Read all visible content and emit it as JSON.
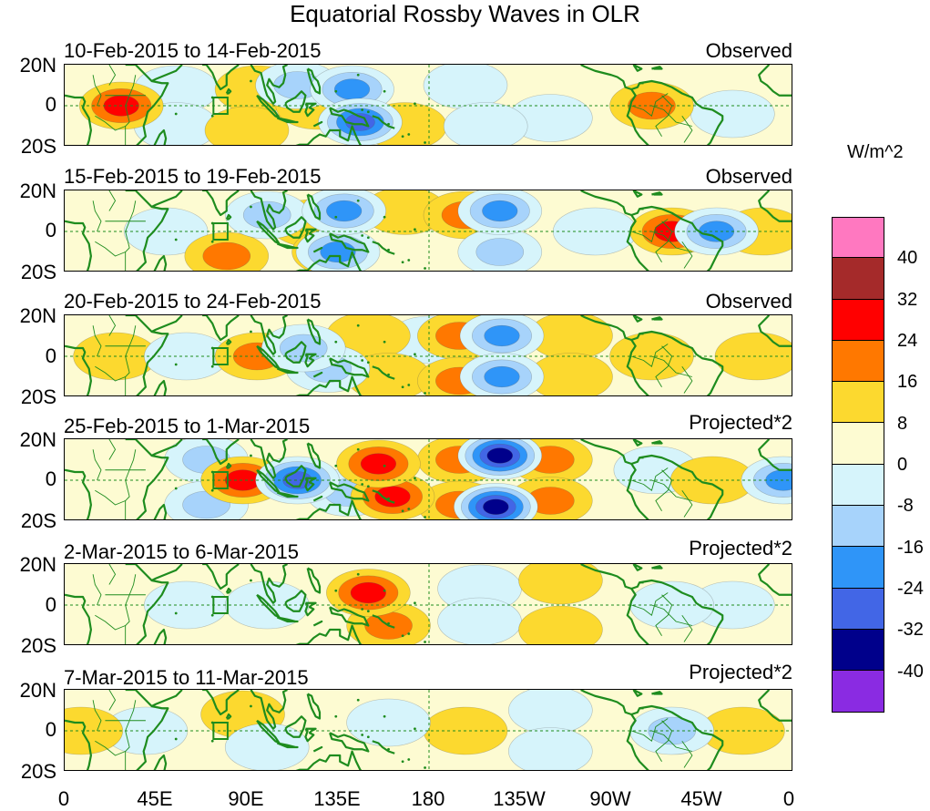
{
  "title": "Equatorial Rossby Waves in OLR",
  "panels": [
    {
      "date_range": "10-Feb-2015 to 14-Feb-2015",
      "type": "Observed"
    },
    {
      "date_range": "15-Feb-2015 to 19-Feb-2015",
      "type": "Observed"
    },
    {
      "date_range": "20-Feb-2015 to 24-Feb-2015",
      "type": "Observed"
    },
    {
      "date_range": "25-Feb-2015 to 1-Mar-2015",
      "type": "Projected*2"
    },
    {
      "date_range": "2-Mar-2015 to 6-Mar-2015",
      "type": "Projected*2"
    },
    {
      "date_range": "7-Mar-2015 to 11-Mar-2015",
      "type": "Projected*2"
    }
  ],
  "lat_labels": [
    "20N",
    "0",
    "20S"
  ],
  "lon_labels": [
    "0",
    "45E",
    "90E",
    "135E",
    "180",
    "135W",
    "90W",
    "45W",
    "0"
  ],
  "colorbar": {
    "units": "W/m^2",
    "levels": [
      "40",
      "32",
      "24",
      "16",
      "8",
      "0",
      "-8",
      "-16",
      "-24",
      "-32",
      "-40"
    ],
    "colors": [
      "#ff78c0",
      "#a52a2a",
      "#ff0000",
      "#ff7800",
      "#fcd92f",
      "#fdfbd2",
      "#d6f4fb",
      "#a7d3fb",
      "#2f95f8",
      "#4266e6",
      "#00008b",
      "#8a2be2"
    ]
  },
  "map": {
    "land_color": "#1e8c1e",
    "zero_line_color": "#1e8c1e"
  },
  "anomalies": [
    [
      {
        "lon": 28,
        "lat": 0,
        "v": 20
      },
      {
        "lon": 55,
        "lat": 8,
        "v": -8
      },
      {
        "lon": 55,
        "lat": -10,
        "v": -8
      },
      {
        "lon": 95,
        "lat": 8,
        "v": 8
      },
      {
        "lon": 90,
        "lat": -12,
        "v": 10
      },
      {
        "lon": 115,
        "lat": 10,
        "v": -12
      },
      {
        "lon": 125,
        "lat": 0,
        "v": 10
      },
      {
        "lon": 142,
        "lat": 8,
        "v": -26
      },
      {
        "lon": 146,
        "lat": -8,
        "v": -28
      },
      {
        "lon": 168,
        "lat": -10,
        "v": 8
      },
      {
        "lon": 198,
        "lat": 10,
        "v": -8
      },
      {
        "lon": 208,
        "lat": -10,
        "v": -10
      },
      {
        "lon": 240,
        "lat": -6,
        "v": -8
      },
      {
        "lon": 290,
        "lat": 0,
        "v": 12
      },
      {
        "lon": 330,
        "lat": -4,
        "v": -8
      }
    ],
    [
      {
        "lon": 50,
        "lat": 0,
        "v": -10
      },
      {
        "lon": 80,
        "lat": -12,
        "v": 12
      },
      {
        "lon": 100,
        "lat": 8,
        "v": -12
      },
      {
        "lon": 122,
        "lat": 4,
        "v": 10
      },
      {
        "lon": 133,
        "lat": -10,
        "v": 12
      },
      {
        "lon": 138,
        "lat": 10,
        "v": -24
      },
      {
        "lon": 135,
        "lat": -10,
        "v": -20
      },
      {
        "lon": 168,
        "lat": 10,
        "v": 10
      },
      {
        "lon": 198,
        "lat": 8,
        "v": 12
      },
      {
        "lon": 215,
        "lat": 10,
        "v": -24
      },
      {
        "lon": 215,
        "lat": -10,
        "v": -12
      },
      {
        "lon": 262,
        "lat": 0,
        "v": -8
      },
      {
        "lon": 300,
        "lat": 0,
        "v": 22
      },
      {
        "lon": 322,
        "lat": 0,
        "v": -24
      },
      {
        "lon": 345,
        "lat": 0,
        "v": 10
      }
    ],
    [
      {
        "lon": 25,
        "lat": 0,
        "v": 6
      },
      {
        "lon": 60,
        "lat": 0,
        "v": -10
      },
      {
        "lon": 95,
        "lat": 0,
        "v": 12
      },
      {
        "lon": 118,
        "lat": 4,
        "v": -16
      },
      {
        "lon": 130,
        "lat": -6,
        "v": -14
      },
      {
        "lon": 150,
        "lat": 10,
        "v": 10
      },
      {
        "lon": 160,
        "lat": -10,
        "v": 10
      },
      {
        "lon": 180,
        "lat": 8,
        "v": -8
      },
      {
        "lon": 195,
        "lat": 10,
        "v": 12
      },
      {
        "lon": 195,
        "lat": -12,
        "v": 12
      },
      {
        "lon": 216,
        "lat": 10,
        "v": -24
      },
      {
        "lon": 216,
        "lat": -10,
        "v": -24
      },
      {
        "lon": 250,
        "lat": 10,
        "v": 8
      },
      {
        "lon": 250,
        "lat": -10,
        "v": 8
      },
      {
        "lon": 290,
        "lat": 0,
        "v": 10
      },
      {
        "lon": 342,
        "lat": 0,
        "v": 10
      }
    ],
    [
      {
        "lon": 70,
        "lat": 10,
        "v": -16
      },
      {
        "lon": 70,
        "lat": -12,
        "v": -16
      },
      {
        "lon": 88,
        "lat": 0,
        "v": 20
      },
      {
        "lon": 115,
        "lat": 0,
        "v": -28
      },
      {
        "lon": 140,
        "lat": -6,
        "v": -12
      },
      {
        "lon": 155,
        "lat": 8,
        "v": 26
      },
      {
        "lon": 162,
        "lat": -8,
        "v": 24
      },
      {
        "lon": 195,
        "lat": 10,
        "v": 12
      },
      {
        "lon": 195,
        "lat": -12,
        "v": 12
      },
      {
        "lon": 215,
        "lat": 12,
        "v": -38
      },
      {
        "lon": 213,
        "lat": -13,
        "v": -38
      },
      {
        "lon": 240,
        "lat": 10,
        "v": 12
      },
      {
        "lon": 240,
        "lat": -10,
        "v": 12
      },
      {
        "lon": 292,
        "lat": 5,
        "v": -8
      },
      {
        "lon": 320,
        "lat": 0,
        "v": 10
      },
      {
        "lon": 355,
        "lat": 0,
        "v": -20
      }
    ],
    [
      {
        "lon": 60,
        "lat": 0,
        "v": -6
      },
      {
        "lon": 100,
        "lat": 0,
        "v": -10
      },
      {
        "lon": 150,
        "lat": 6,
        "v": 20
      },
      {
        "lon": 160,
        "lat": -10,
        "v": 16
      },
      {
        "lon": 205,
        "lat": 8,
        "v": -8
      },
      {
        "lon": 205,
        "lat": -8,
        "v": -8
      },
      {
        "lon": 245,
        "lat": 12,
        "v": 8
      },
      {
        "lon": 245,
        "lat": -12,
        "v": 8
      },
      {
        "lon": 300,
        "lat": 0,
        "v": -10
      },
      {
        "lon": 330,
        "lat": 0,
        "v": -8
      }
    ],
    [
      {
        "lon": 8,
        "lat": 0,
        "v": 10
      },
      {
        "lon": 40,
        "lat": 0,
        "v": -6
      },
      {
        "lon": 88,
        "lat": 8,
        "v": 6
      },
      {
        "lon": 100,
        "lat": -8,
        "v": -8
      },
      {
        "lon": 160,
        "lat": 4,
        "v": -10
      },
      {
        "lon": 198,
        "lat": 0,
        "v": 6
      },
      {
        "lon": 240,
        "lat": 10,
        "v": -8
      },
      {
        "lon": 240,
        "lat": -10,
        "v": -8
      },
      {
        "lon": 300,
        "lat": 0,
        "v": -12
      },
      {
        "lon": 335,
        "lat": 0,
        "v": 6
      }
    ]
  ]
}
